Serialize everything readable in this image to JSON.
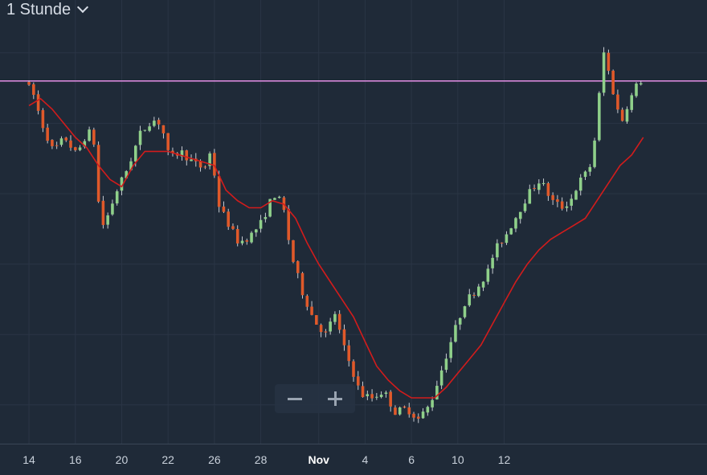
{
  "header": {
    "timeframe_label": "1 Stunde"
  },
  "zoom": {
    "out_icon": "minus-icon",
    "in_icon": "plus-icon"
  },
  "colors": {
    "background": "#1f2a38",
    "grid": "#2a3545",
    "axis_text": "#c9d1db",
    "up": "#8fd08a",
    "down": "#e0592a",
    "moving_average": "#d21c1c",
    "level_line": "#e58fe6"
  },
  "chart_data": {
    "type": "candlestick",
    "x_tick_labels": [
      "14",
      "16",
      "20",
      "22",
      "26",
      "28",
      "Nov",
      "4",
      "6",
      "10",
      "12"
    ],
    "x_tick_bold": [
      false,
      false,
      false,
      false,
      false,
      false,
      true,
      false,
      false,
      false,
      false
    ],
    "price_path": [
      [
        0.0,
        92
      ],
      [
        0.8,
        88
      ],
      [
        1.5,
        80
      ],
      [
        2.5,
        72
      ],
      [
        3.5,
        76
      ],
      [
        4.5,
        71
      ],
      [
        5.5,
        78
      ],
      [
        6.2,
        73
      ],
      [
        6.5,
        50
      ],
      [
        7.0,
        52
      ],
      [
        8.0,
        61
      ],
      [
        9.0,
        68
      ],
      [
        10.0,
        77
      ],
      [
        11.0,
        81
      ],
      [
        11.8,
        80
      ],
      [
        12.5,
        70
      ],
      [
        13.5,
        72
      ],
      [
        14.5,
        69
      ],
      [
        15.5,
        67
      ],
      [
        16.2,
        73
      ],
      [
        16.6,
        58
      ],
      [
        17.5,
        52
      ],
      [
        18.5,
        46
      ],
      [
        19.5,
        48
      ],
      [
        20.5,
        52
      ],
      [
        21.5,
        60
      ],
      [
        22.3,
        57
      ],
      [
        23.0,
        43
      ],
      [
        24.0,
        32
      ],
      [
        25.0,
        24
      ],
      [
        26.0,
        20
      ],
      [
        26.8,
        26
      ],
      [
        27.5,
        17
      ],
      [
        28.5,
        8
      ],
      [
        29.0,
        3
      ],
      [
        30.0,
        2
      ],
      [
        31.0,
        4
      ],
      [
        32.0,
        -2
      ],
      [
        33.0,
        -1
      ],
      [
        34.0,
        -4
      ],
      [
        35.0,
        0
      ],
      [
        36.0,
        10
      ],
      [
        37.0,
        20
      ],
      [
        38.0,
        29
      ],
      [
        39.0,
        33
      ],
      [
        40.0,
        38
      ],
      [
        40.6,
        44
      ],
      [
        41.5,
        48
      ],
      [
        42.5,
        54
      ],
      [
        43.5,
        60
      ],
      [
        44.5,
        64
      ],
      [
        45.5,
        58
      ],
      [
        46.5,
        56
      ],
      [
        47.3,
        59
      ],
      [
        47.8,
        63
      ],
      [
        48.5,
        66
      ],
      [
        49.0,
        69
      ],
      [
        49.6,
        88
      ],
      [
        50.0,
        100
      ],
      [
        50.6,
        92
      ],
      [
        51.0,
        86
      ],
      [
        51.5,
        80
      ],
      [
        52.0,
        85
      ],
      [
        52.6,
        89
      ],
      [
        53.0,
        92
      ]
    ],
    "moving_average": [
      [
        0.0,
        85
      ],
      [
        1.0,
        87
      ],
      [
        2.0,
        84
      ],
      [
        3.0,
        80
      ],
      [
        4.0,
        76
      ],
      [
        5.0,
        73
      ],
      [
        6.0,
        68
      ],
      [
        7.0,
        64
      ],
      [
        8.0,
        62
      ],
      [
        9.0,
        68
      ],
      [
        10.0,
        72
      ],
      [
        11.0,
        72
      ],
      [
        12.0,
        72
      ],
      [
        13.0,
        71
      ],
      [
        14.0,
        70
      ],
      [
        15.0,
        69
      ],
      [
        16.0,
        68
      ],
      [
        17.0,
        61
      ],
      [
        18.0,
        58
      ],
      [
        19.0,
        56
      ],
      [
        20.0,
        56
      ],
      [
        21.0,
        58
      ],
      [
        22.0,
        57
      ],
      [
        23.0,
        53
      ],
      [
        24.0,
        46
      ],
      [
        25.0,
        40
      ],
      [
        26.0,
        35
      ],
      [
        27.0,
        30
      ],
      [
        28.0,
        25
      ],
      [
        29.0,
        18
      ],
      [
        30.0,
        11
      ],
      [
        31.0,
        7
      ],
      [
        32.0,
        4
      ],
      [
        33.0,
        2
      ],
      [
        34.0,
        2
      ],
      [
        35.0,
        2
      ],
      [
        36.0,
        5
      ],
      [
        37.0,
        9
      ],
      [
        38.0,
        13
      ],
      [
        39.0,
        17
      ],
      [
        40.0,
        23
      ],
      [
        41.0,
        29
      ],
      [
        42.0,
        35
      ],
      [
        43.0,
        40
      ],
      [
        44.0,
        44
      ],
      [
        45.0,
        47
      ],
      [
        46.0,
        49
      ],
      [
        47.0,
        51
      ],
      [
        48.0,
        53
      ],
      [
        49.0,
        58
      ],
      [
        50.0,
        63
      ],
      [
        51.0,
        68
      ],
      [
        52.0,
        71
      ],
      [
        53.0,
        76
      ]
    ],
    "horizontal_level": 92,
    "x_range": [
      -2.5,
      58.5
    ],
    "y_range": [
      -11,
      115
    ],
    "candle_step": 0.4,
    "grid": true
  }
}
